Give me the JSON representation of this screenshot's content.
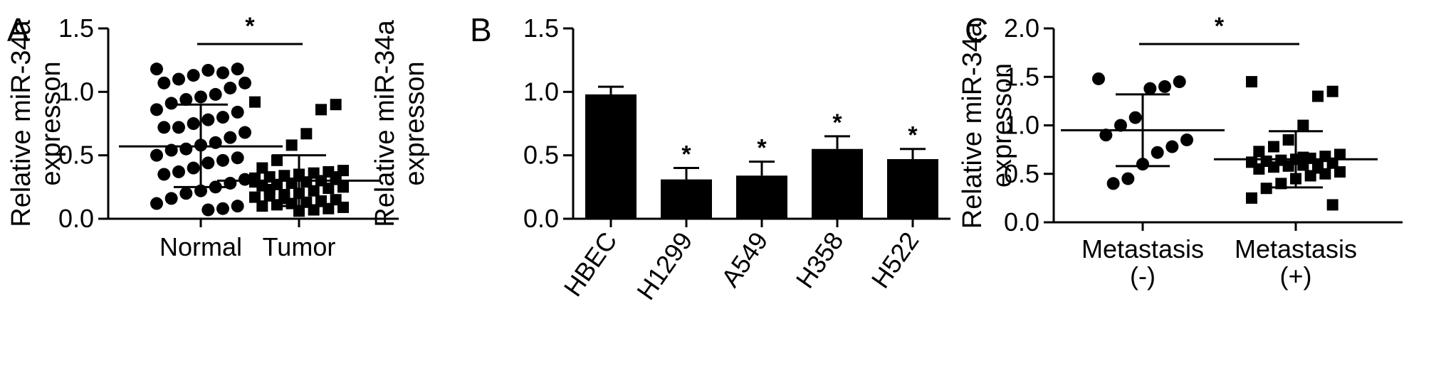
{
  "chart_data": [
    {
      "panel": "A",
      "type": "scatter",
      "ylabel": [
        "Relative miR-34a",
        "expresson"
      ],
      "ylim": [
        0,
        1.5
      ],
      "yticks": [
        "0.0",
        "0.5",
        "1.0",
        "1.5"
      ],
      "categories": [
        "Normal",
        "Tumor"
      ],
      "significance": "*",
      "groups": [
        {
          "category": "Normal",
          "marker": "circle",
          "mean": 0.57,
          "sd_low": 0.25,
          "sd_high": 0.9,
          "points": [
            1.18,
            1.18,
            1.15,
            1.17,
            1.13,
            1.1,
            1.07,
            1.07,
            1.03,
            0.98,
            0.96,
            0.94,
            0.91,
            0.86,
            0.84,
            0.8,
            0.78,
            0.75,
            0.72,
            0.72,
            0.68,
            0.64,
            0.6,
            0.58,
            0.55,
            0.54,
            0.5,
            0.48,
            0.46,
            0.44,
            0.4,
            0.37,
            0.35,
            0.31,
            0.28,
            0.25,
            0.22,
            0.2,
            0.16,
            0.12,
            0.1,
            0.08,
            0.07
          ]
        },
        {
          "category": "Tumor",
          "marker": "square",
          "mean": 0.3,
          "sd_low": 0.1,
          "sd_high": 0.5,
          "points": [
            0.92,
            0.9,
            0.86,
            0.67,
            0.58,
            0.46,
            0.4,
            0.38,
            0.37,
            0.36,
            0.35,
            0.34,
            0.33,
            0.32,
            0.31,
            0.3,
            0.29,
            0.28,
            0.27,
            0.26,
            0.25,
            0.24,
            0.22,
            0.2,
            0.19,
            0.18,
            0.17,
            0.15,
            0.14,
            0.13,
            0.12,
            0.11,
            0.1,
            0.09,
            0.08,
            0.07,
            0.06,
            0.16,
            0.23,
            0.29,
            0.33
          ]
        }
      ]
    },
    {
      "panel": "B",
      "type": "bar",
      "ylabel": [
        "Relative miR-34a",
        "expresson"
      ],
      "ylim": [
        0,
        1.5
      ],
      "yticks": [
        "0.0",
        "0.5",
        "1.0",
        "1.5"
      ],
      "categories": [
        "HBEC",
        "H1299",
        "A549",
        "H358",
        "H522"
      ],
      "values": [
        0.98,
        0.31,
        0.34,
        0.55,
        0.47
      ],
      "errors": [
        0.06,
        0.09,
        0.11,
        0.1,
        0.08
      ],
      "significance": [
        "",
        "*",
        "*",
        "*",
        "*"
      ]
    },
    {
      "panel": "C",
      "type": "scatter",
      "ylabel": [
        "Relative miR-34a",
        "expresson"
      ],
      "ylim": [
        0,
        2.0
      ],
      "yticks": [
        "0.0",
        "0.5",
        "1.0",
        "1.5",
        "2.0"
      ],
      "categories": [
        "Metastasis\n(-)",
        "Metastasis\n(+)"
      ],
      "category_lines": [
        [
          "Metastasis",
          "(-)"
        ],
        [
          "Metastasis",
          "(+)"
        ]
      ],
      "significance": "*",
      "groups": [
        {
          "category": "Metastasis (-)",
          "marker": "circle",
          "mean": 0.95,
          "sd_low": 0.58,
          "sd_high": 1.32,
          "points": [
            1.48,
            1.45,
            1.4,
            1.38,
            1.08,
            1.0,
            0.9,
            0.85,
            0.78,
            0.72,
            0.6,
            0.45,
            0.4
          ]
        },
        {
          "category": "Metastasis (+)",
          "marker": "square",
          "mean": 0.65,
          "sd_low": 0.36,
          "sd_high": 0.94,
          "points": [
            1.45,
            1.35,
            1.3,
            1.0,
            0.85,
            0.78,
            0.73,
            0.7,
            0.68,
            0.66,
            0.65,
            0.64,
            0.63,
            0.62,
            0.61,
            0.6,
            0.59,
            0.58,
            0.57,
            0.55,
            0.52,
            0.5,
            0.48,
            0.45,
            0.4,
            0.35,
            0.25,
            0.18,
            0.56,
            0.67
          ]
        }
      ]
    }
  ]
}
